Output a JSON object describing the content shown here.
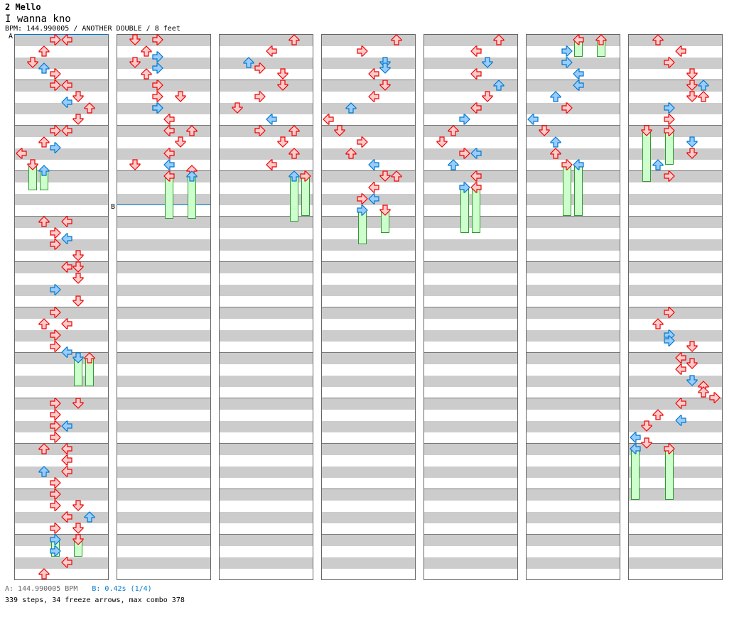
{
  "header": {
    "title": "2 Mello",
    "song": "I wanna kno",
    "info": "BPM: 144.990005 / ANOTHER DOUBLE / 8 feet"
  },
  "markers": {
    "a_label": "A",
    "b_label": "B"
  },
  "footer": {
    "a_text": "A: 144.990005 BPM",
    "b_text": "B: 0.42s (1/4)",
    "summary": "339 steps, 34 freeze arrows, max combo 378"
  },
  "colors": {
    "red": "#ff4444",
    "blue": "#3399ff",
    "freeze": "#ccffcc"
  },
  "chart": {
    "columns": 7,
    "measures_per_column": 12,
    "lanes": [
      "left",
      "down",
      "up",
      "right",
      "left",
      "down",
      "up",
      "right"
    ],
    "notes": [
      [
        0,
        3,
        "r"
      ],
      [
        0,
        4,
        "r"
      ],
      [
        1,
        2,
        "r"
      ],
      [
        2,
        1,
        "r"
      ],
      [
        2.5,
        2,
        "b"
      ],
      [
        3,
        3,
        "r"
      ],
      [
        4,
        3,
        "r"
      ],
      [
        4,
        4,
        "r"
      ],
      [
        5,
        5,
        "r"
      ],
      [
        5.5,
        4,
        "b"
      ],
      [
        6,
        6,
        "r"
      ],
      [
        7,
        5,
        "r"
      ],
      [
        8,
        3,
        "r"
      ],
      [
        8,
        4,
        "r"
      ],
      [
        9,
        2,
        "r"
      ],
      [
        9.5,
        3,
        "b"
      ],
      [
        10,
        0,
        "r"
      ],
      [
        11,
        1,
        "r",
        2.25
      ],
      [
        11.5,
        2,
        "b",
        1.75
      ],
      [
        16,
        2,
        "r"
      ],
      [
        16,
        4,
        "r"
      ],
      [
        17,
        3,
        "r"
      ],
      [
        17.5,
        4,
        "b"
      ],
      [
        18,
        3,
        "r"
      ],
      [
        19,
        5,
        "r"
      ],
      [
        20,
        4,
        "r"
      ],
      [
        20,
        5,
        "r"
      ],
      [
        21,
        5,
        "r"
      ],
      [
        22,
        3,
        "b"
      ],
      [
        23,
        5,
        "r"
      ],
      [
        24,
        3,
        "r"
      ],
      [
        25,
        2,
        "r"
      ],
      [
        25,
        4,
        "r"
      ],
      [
        26,
        3,
        "r"
      ],
      [
        27,
        3,
        "r"
      ],
      [
        27.5,
        4,
        "b"
      ],
      [
        28,
        5,
        "b",
        2.5
      ],
      [
        28,
        6,
        "r",
        2.5
      ],
      [
        32,
        3,
        "r"
      ],
      [
        32,
        5,
        "r"
      ],
      [
        33,
        3,
        "r"
      ],
      [
        34,
        3,
        "r"
      ],
      [
        34,
        4,
        "b"
      ],
      [
        35,
        3,
        "r"
      ],
      [
        36,
        2,
        "r"
      ],
      [
        36,
        4,
        "r"
      ],
      [
        37,
        4,
        "r"
      ],
      [
        38,
        2,
        "b"
      ],
      [
        38,
        4,
        "r"
      ],
      [
        39,
        3,
        "r"
      ],
      [
        40,
        3,
        "r"
      ],
      [
        41,
        3,
        "r"
      ],
      [
        41,
        5,
        "r"
      ],
      [
        42,
        4,
        "r"
      ],
      [
        42,
        6,
        "b"
      ],
      [
        43,
        3,
        "r"
      ],
      [
        43,
        5,
        "r"
      ],
      [
        44,
        3,
        "b",
        1.5
      ],
      [
        44,
        5,
        "r",
        1.5
      ],
      [
        45,
        3,
        "b"
      ],
      [
        46,
        4,
        "r"
      ],
      [
        47,
        2,
        "r"
      ],
      [
        48,
        1,
        "r"
      ],
      [
        48,
        3,
        "r"
      ],
      [
        49,
        2,
        "r"
      ],
      [
        49.5,
        3,
        "b"
      ],
      [
        50,
        1,
        "r"
      ],
      [
        50.5,
        3,
        "b"
      ],
      [
        51,
        2,
        "r"
      ],
      [
        52,
        3,
        "r"
      ],
      [
        53,
        3,
        "r"
      ],
      [
        53,
        5,
        "r"
      ],
      [
        54,
        3,
        "b"
      ],
      [
        54,
        3,
        "b"
      ],
      [
        55,
        4,
        "r"
      ],
      [
        56,
        4,
        "r"
      ],
      [
        56,
        6,
        "r"
      ],
      [
        57,
        5,
        "r"
      ],
      [
        58,
        4,
        "r"
      ],
      [
        59,
        1,
        "r"
      ],
      [
        59,
        4,
        "b"
      ],
      [
        59.5,
        6,
        "r"
      ],
      [
        60,
        4,
        "r",
        3.75
      ],
      [
        60,
        6,
        "b",
        3.75
      ],
      [
        96,
        6,
        "r"
      ],
      [
        97,
        4,
        "r"
      ],
      [
        98,
        2,
        "b"
      ],
      [
        98.5,
        3,
        "r"
      ],
      [
        99,
        5,
        "r"
      ],
      [
        100,
        5,
        "r"
      ],
      [
        101,
        3,
        "r"
      ],
      [
        102,
        1,
        "r"
      ],
      [
        103,
        4,
        "b"
      ],
      [
        104,
        3,
        "r"
      ],
      [
        104,
        6,
        "r"
      ],
      [
        105,
        5,
        "r"
      ],
      [
        106,
        6,
        "r"
      ],
      [
        107,
        4,
        "r"
      ],
      [
        108,
        6,
        "b",
        4
      ],
      [
        108,
        7,
        "r",
        3.5
      ],
      [
        144,
        6,
        "r"
      ],
      [
        145,
        3,
        "r"
      ],
      [
        146,
        5,
        "b"
      ],
      [
        146.5,
        5,
        "b"
      ],
      [
        147,
        4,
        "r"
      ],
      [
        148,
        5,
        "r"
      ],
      [
        149,
        4,
        "r"
      ],
      [
        150,
        2,
        "b"
      ],
      [
        151,
        0,
        "r"
      ],
      [
        152,
        1,
        "r"
      ],
      [
        153,
        3,
        "r"
      ],
      [
        154,
        2,
        "r"
      ],
      [
        155,
        4,
        "b"
      ],
      [
        156,
        5,
        "r"
      ],
      [
        156,
        6,
        "r"
      ],
      [
        157,
        4,
        "r"
      ],
      [
        158,
        3,
        "r"
      ],
      [
        158,
        4,
        "b"
      ],
      [
        159,
        3,
        "b",
        3
      ],
      [
        159,
        5,
        "r",
        2
      ],
      [
        192,
        6,
        "r"
      ],
      [
        193,
        4,
        "r"
      ],
      [
        194,
        5,
        "b"
      ],
      [
        195,
        4,
        "r"
      ],
      [
        196,
        6,
        "b"
      ],
      [
        197,
        5,
        "r"
      ],
      [
        198,
        4,
        "r"
      ],
      [
        199,
        3,
        "b"
      ],
      [
        200,
        2,
        "r"
      ],
      [
        201,
        1,
        "r"
      ],
      [
        202,
        3,
        "r"
      ],
      [
        202,
        4,
        "b"
      ],
      [
        203,
        2,
        "b"
      ],
      [
        204,
        4,
        "r"
      ],
      [
        205,
        3,
        "b",
        4
      ],
      [
        205,
        4,
        "r",
        4
      ],
      [
        240,
        4,
        "r",
        1.5
      ],
      [
        240,
        6,
        "r",
        1.5
      ],
      [
        241,
        3,
        "b"
      ],
      [
        242,
        3,
        "b"
      ],
      [
        243,
        4,
        "b"
      ],
      [
        244,
        4,
        "b"
      ],
      [
        245,
        2,
        "b"
      ],
      [
        246,
        3,
        "r"
      ],
      [
        247,
        0,
        "b"
      ],
      [
        248,
        1,
        "r"
      ],
      [
        249,
        2,
        "b"
      ],
      [
        250,
        2,
        "r"
      ],
      [
        251,
        3,
        "r",
        4.5
      ],
      [
        251,
        4,
        "b",
        4.5
      ],
      [
        288,
        2,
        "r"
      ],
      [
        289,
        4,
        "r"
      ],
      [
        290,
        3,
        "r"
      ],
      [
        291,
        5,
        "r"
      ],
      [
        292,
        5,
        "r"
      ],
      [
        292,
        6,
        "b"
      ],
      [
        293,
        5,
        "r"
      ],
      [
        293,
        6,
        "r"
      ],
      [
        294,
        3,
        "b"
      ],
      [
        295,
        3,
        "r"
      ],
      [
        296,
        1,
        "r",
        4.5
      ],
      [
        296,
        3,
        "r",
        3
      ],
      [
        297,
        5,
        "b"
      ],
      [
        298,
        5,
        "r"
      ],
      [
        299,
        2,
        "b"
      ],
      [
        300,
        3,
        "r"
      ],
      [
        336,
        3,
        "r"
      ],
      [
        337,
        2,
        "r"
      ],
      [
        338,
        3,
        "b"
      ],
      [
        338.5,
        3,
        "b"
      ],
      [
        339,
        5,
        "r"
      ],
      [
        340,
        4,
        "r"
      ],
      [
        340.5,
        5,
        "r"
      ],
      [
        341,
        4,
        "r"
      ],
      [
        342,
        5,
        "b"
      ],
      [
        342.5,
        6,
        "r"
      ],
      [
        343,
        6,
        "r"
      ],
      [
        343.5,
        7,
        "r"
      ],
      [
        344,
        4,
        "r"
      ],
      [
        345,
        2,
        "r"
      ],
      [
        345.5,
        4,
        "b"
      ],
      [
        346,
        1,
        "r"
      ],
      [
        347,
        0,
        "b"
      ],
      [
        347.5,
        1,
        "r"
      ],
      [
        348,
        0,
        "b",
        4.5
      ],
      [
        348,
        3,
        "r",
        4.5
      ]
    ]
  }
}
